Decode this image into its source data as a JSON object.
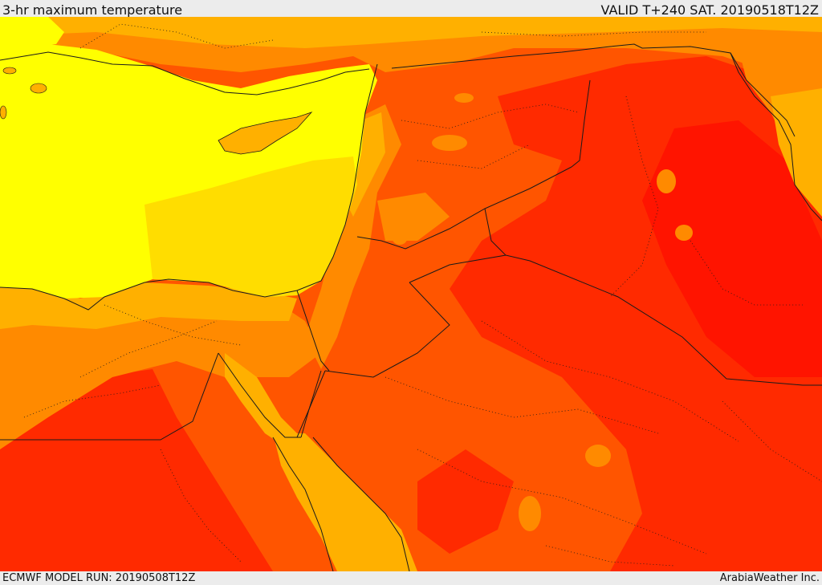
{
  "header": {
    "title": "3-hr maximum temperature",
    "valid_time": "VALID T+240 SAT. 20190518T12Z"
  },
  "footer": {
    "model_run": "ECMWF MODEL RUN: 20190508T12Z",
    "credit": "ArabiaWeather Inc."
  },
  "map": {
    "colors": {
      "sea": "#ffff00",
      "coast_band": "#ffdd00",
      "warm": "#ffb000",
      "hot": "#ff8a00",
      "very_hot": "#ff5500",
      "extreme": "#ff2a00",
      "peak": "#ff1400",
      "border": "#1a1a1a"
    }
  }
}
